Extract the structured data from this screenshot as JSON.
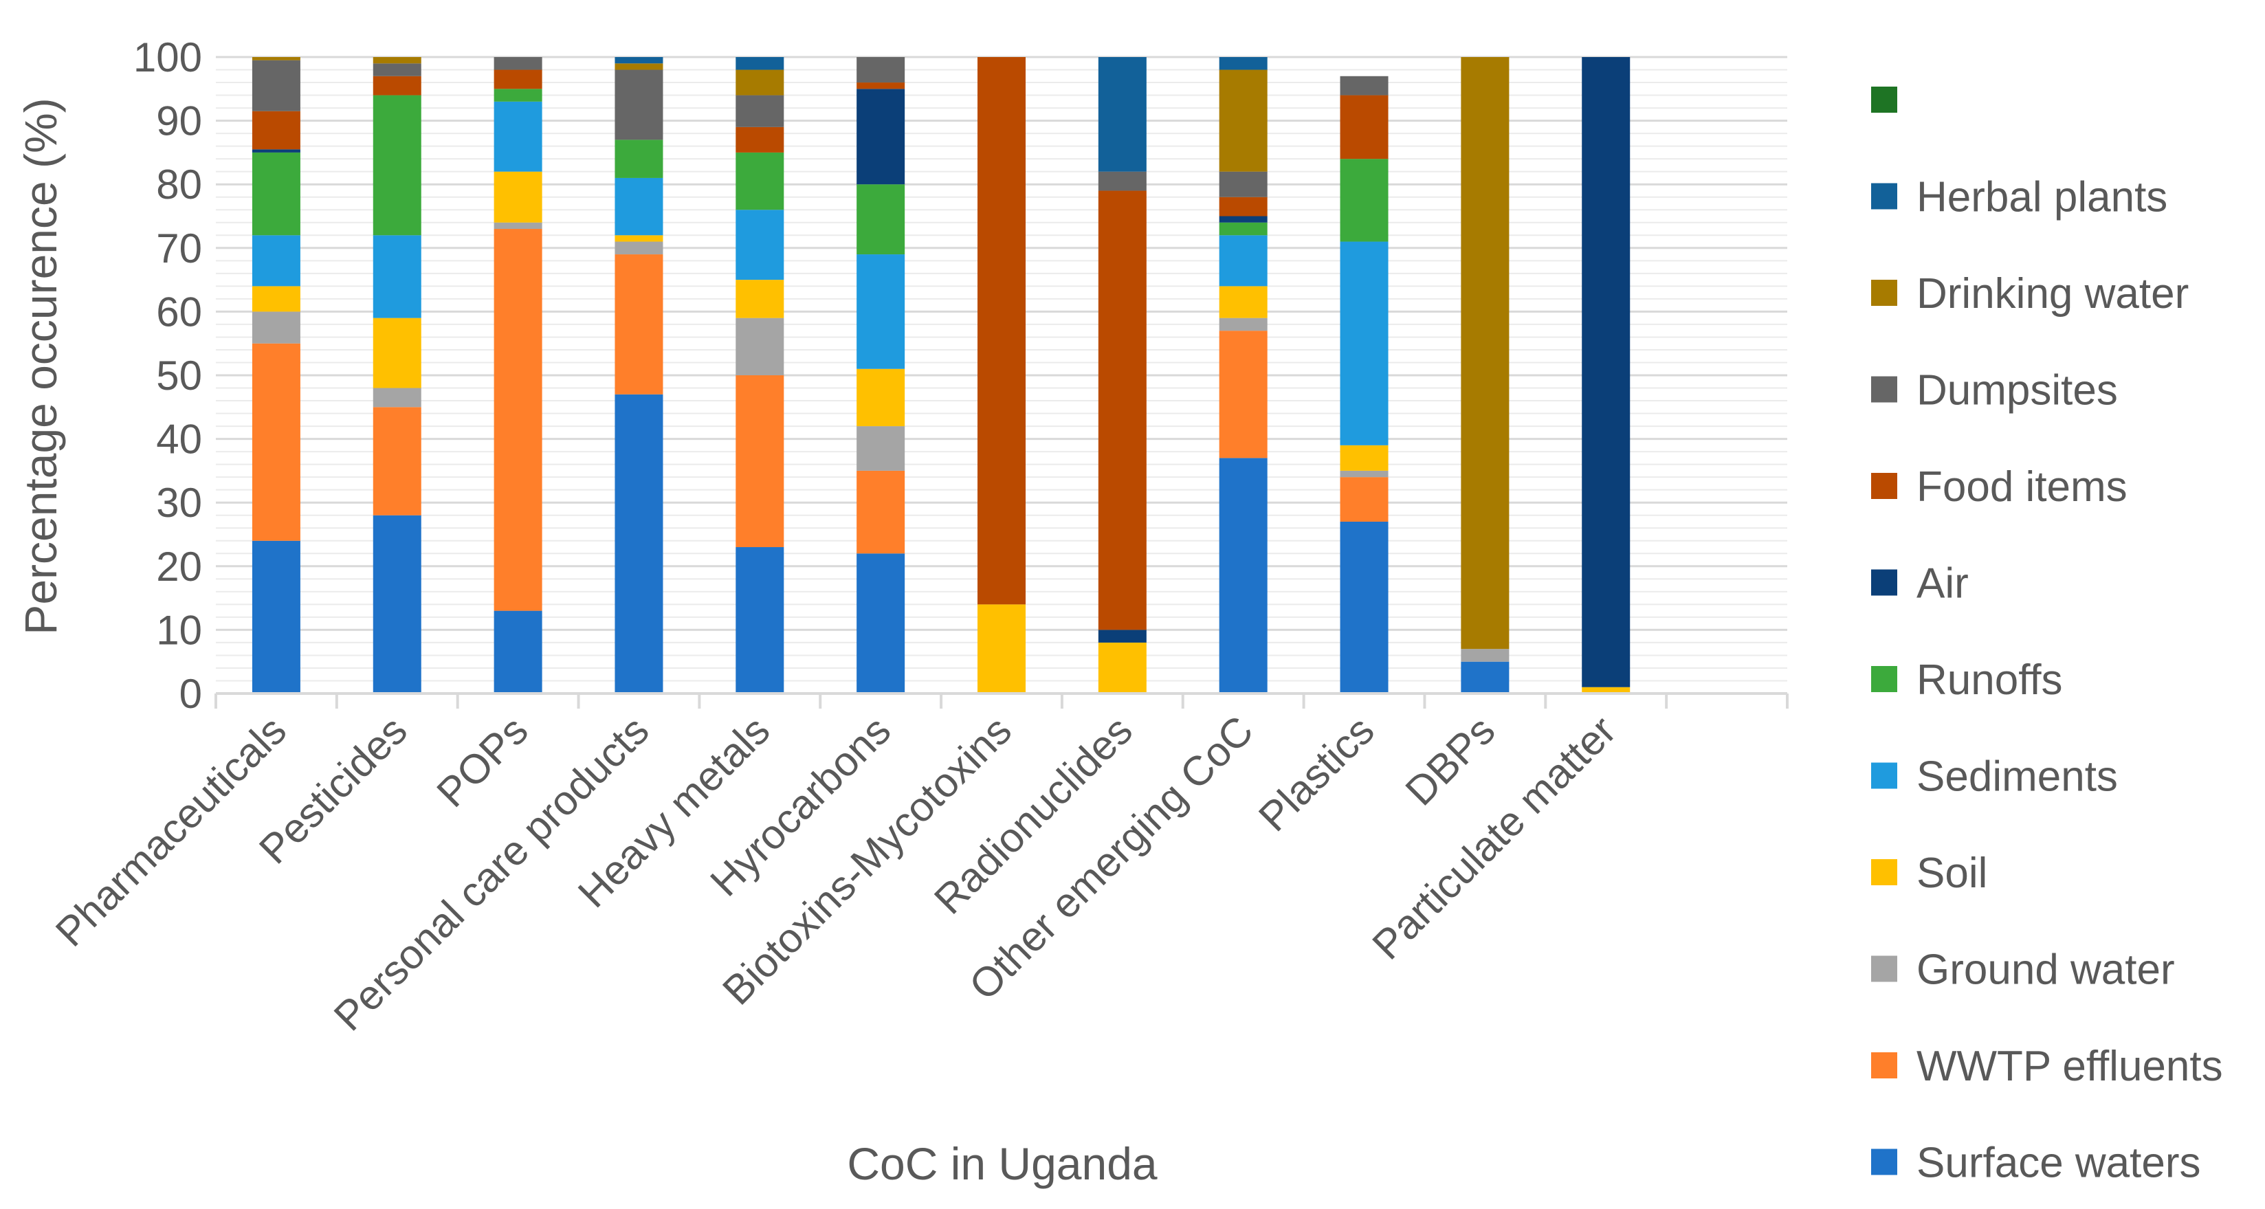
{
  "chart_data": {
    "type": "bar",
    "stacked": true,
    "title": "",
    "xlabel": "CoC in Uganda",
    "ylabel": "Percentage occurence (%)",
    "ylim": [
      0,
      100
    ],
    "yticks": [
      0,
      10,
      20,
      30,
      40,
      50,
      60,
      70,
      80,
      90,
      100
    ],
    "grid": true,
    "legend_position": "right",
    "categories": [
      "Pharmaceuticals",
      "Pesticides",
      "POPs",
      "Personal care products",
      "Heavy metals",
      "Hyrocarbons",
      "Biotoxins-Mycotoxins",
      "Radionuclides",
      "Other emerging CoC",
      "Plastics",
      "DBPs",
      "Particulate matter",
      ""
    ],
    "series": [
      {
        "name": "Surface waters",
        "color": "#1F73C9",
        "values": [
          24,
          28,
          13,
          47,
          23,
          22,
          0,
          0,
          37,
          27,
          5,
          0,
          0
        ]
      },
      {
        "name": "WWTP effluents",
        "color": "#FF7F2A",
        "values": [
          31,
          17,
          60,
          22,
          27,
          13,
          0,
          0,
          20,
          7,
          0,
          0,
          0
        ]
      },
      {
        "name": "Ground water",
        "color": "#A5A5A5",
        "values": [
          5,
          3,
          1,
          2,
          9,
          7,
          0,
          0,
          2,
          1,
          2,
          0,
          0
        ]
      },
      {
        "name": "Soil",
        "color": "#FFC000",
        "values": [
          4,
          11,
          8,
          1,
          6,
          9,
          14,
          8,
          5,
          4,
          0,
          1,
          0
        ]
      },
      {
        "name": "Sediments",
        "color": "#1F9BDE",
        "values": [
          8,
          13,
          11,
          9,
          11,
          18,
          0,
          0,
          8,
          32,
          0,
          0,
          0
        ]
      },
      {
        "name": "Runoffs",
        "color": "#3CAA3C",
        "values": [
          13,
          22,
          2,
          6,
          9,
          11,
          0,
          0,
          2,
          13,
          0,
          0,
          0
        ]
      },
      {
        "name": "Air",
        "color": "#0B3F78",
        "values": [
          0.5,
          0,
          0,
          0,
          0,
          15,
          0,
          2,
          1,
          0,
          0,
          99,
          0
        ]
      },
      {
        "name": "Food items",
        "color": "#BA4A00",
        "values": [
          6,
          3,
          3,
          0,
          4,
          1,
          86,
          69,
          3,
          10,
          0,
          0,
          0
        ]
      },
      {
        "name": "Dumpsites",
        "color": "#666666",
        "values": [
          8,
          2,
          2,
          11,
          5,
          4,
          0,
          3,
          4,
          3,
          0,
          0,
          0
        ]
      },
      {
        "name": "Drinking water",
        "color": "#A77B00",
        "values": [
          0.5,
          1,
          0,
          1,
          4,
          0,
          0,
          0,
          16,
          0,
          93,
          0,
          0
        ]
      },
      {
        "name": "Herbal plants",
        "color": "#126199",
        "values": [
          0,
          0,
          0,
          1,
          2,
          0,
          0,
          18,
          2,
          0,
          0,
          0,
          0
        ]
      },
      {
        "name": "",
        "color": "#1E7424",
        "values": [
          0,
          0,
          0,
          0,
          0,
          0,
          0,
          0,
          0,
          0,
          0,
          0,
          0
        ]
      }
    ]
  }
}
